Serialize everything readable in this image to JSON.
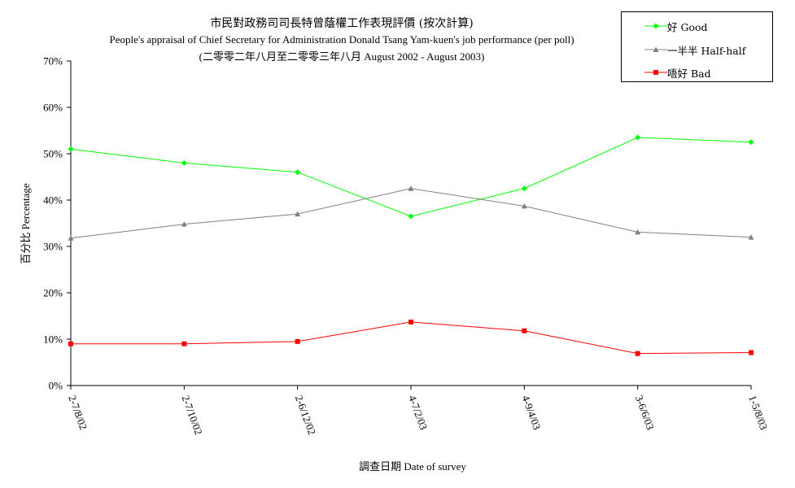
{
  "chart_data": {
    "type": "line",
    "title": "市民對政務司司長特曾蔭權工作表現評價 (按次計算)",
    "subtitle": "People's appraisal of Chief Secretary for Administration Donald Tsang Yam-kuen's job performance (per poll)",
    "subtitle2": "(二零零二年八月至二零零三年八月 August 2002 - August 2003)",
    "xlabel": "調查日期 Date of survey",
    "ylabel": "百分比 Percentage",
    "ylim": [
      0,
      70
    ],
    "yticks": [
      "0%",
      "10%",
      "20%",
      "30%",
      "40%",
      "50%",
      "60%",
      "70%"
    ],
    "categories": [
      "2-7/8/02",
      "2-7/10/02",
      "2-6/12/02",
      "4-7/2/03",
      "4-9/4/03",
      "3-6/6/03",
      "1-5/8/03"
    ],
    "grid": false,
    "legend_position": "top-right",
    "series": [
      {
        "name": "好 Good",
        "color": "#00ff00",
        "marker": "diamond",
        "values": [
          51.0,
          48.0,
          46.0,
          36.5,
          42.5,
          53.5,
          52.5
        ]
      },
      {
        "name": "一半半 Half-half",
        "color": "#808080",
        "marker": "triangle",
        "values": [
          31.8,
          34.8,
          37.0,
          42.5,
          38.7,
          33.1,
          32.0
        ]
      },
      {
        "name": "唔好 Bad",
        "color": "#ff0000",
        "marker": "square",
        "values": [
          9.0,
          9.0,
          9.5,
          13.7,
          11.8,
          6.9,
          7.1
        ]
      }
    ]
  }
}
